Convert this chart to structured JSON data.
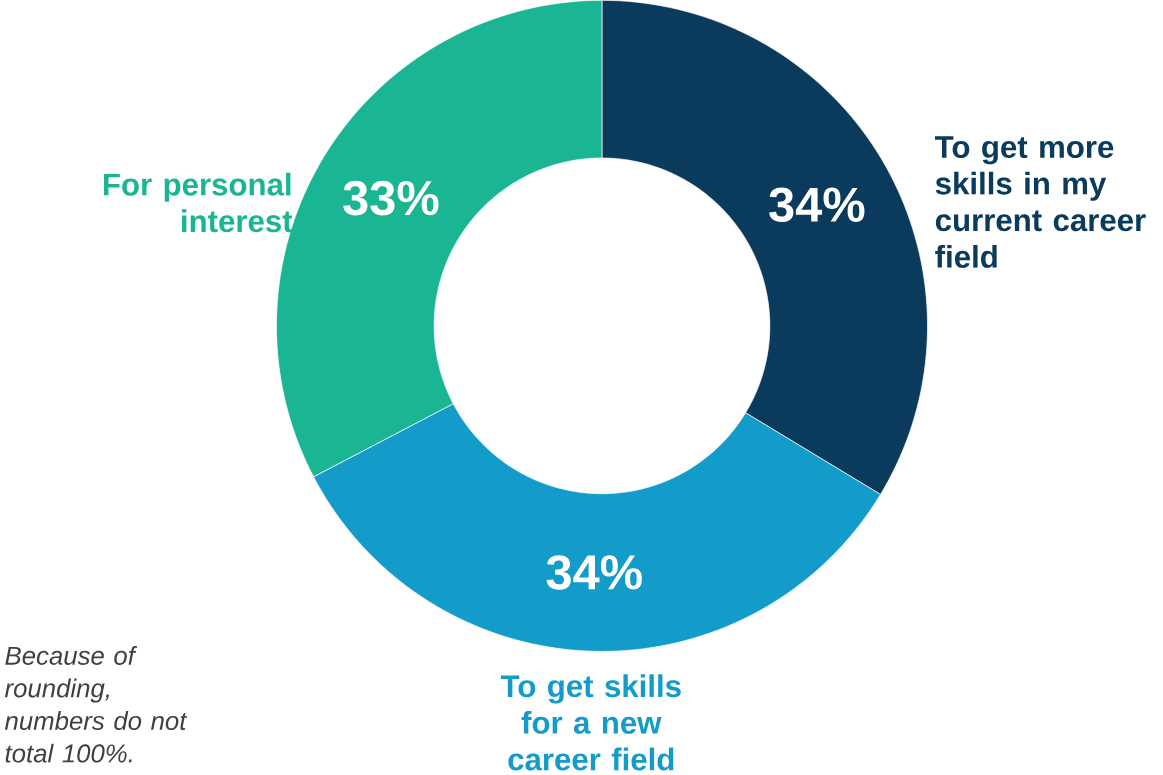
{
  "chart_data": {
    "type": "donut",
    "categories": [
      "To get more skills in my current career field",
      "To get skills for a new career field",
      "For personal interest"
    ],
    "values": [
      34,
      34,
      33
    ],
    "colors": [
      "#0a3b5c",
      "#139bc9",
      "#1ab694"
    ],
    "value_labels": [
      "34%",
      "34%",
      "33%"
    ],
    "annotations": [
      "Because of rounding, numbers do not total 100%."
    ]
  }
}
